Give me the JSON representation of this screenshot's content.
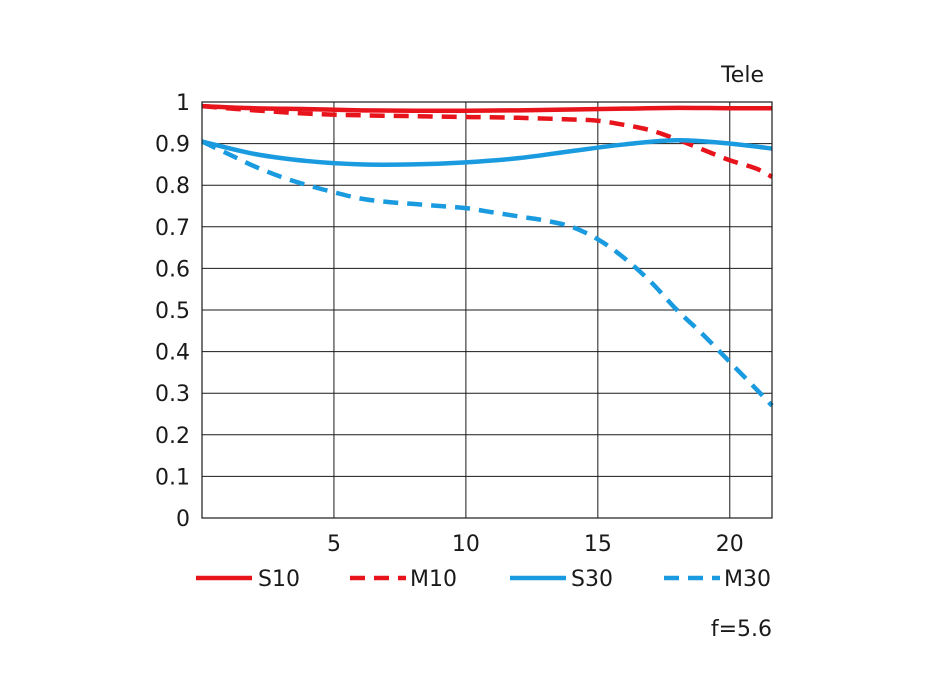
{
  "chart_data": {
    "type": "line",
    "title": "Tele",
    "footnote": "f=5.6",
    "xlim": [
      0,
      21.6
    ],
    "ylim": [
      0,
      1
    ],
    "x_ticks": [
      5,
      10,
      15,
      20
    ],
    "x_tick_labels": [
      "5",
      "10",
      "15",
      "20"
    ],
    "y_ticks": [
      0,
      0.1,
      0.2,
      0.3,
      0.4,
      0.5,
      0.6,
      0.7,
      0.8,
      0.9,
      1
    ],
    "y_tick_labels": [
      "0",
      "0.1",
      "0.2",
      "0.3",
      "0.4",
      "0.5",
      "0.6",
      "0.7",
      "0.8",
      "0.9",
      "1"
    ],
    "grid": true,
    "legend_position": "bottom",
    "series": [
      {
        "name": "S10",
        "color": "#e8141c",
        "dashed": false,
        "x": [
          0,
          2,
          4,
          6,
          8,
          10,
          12,
          14,
          16,
          18,
          20,
          21.6
        ],
        "y": [
          0.99,
          0.985,
          0.983,
          0.98,
          0.979,
          0.979,
          0.98,
          0.982,
          0.984,
          0.986,
          0.985,
          0.985
        ]
      },
      {
        "name": "M10",
        "color": "#e8141c",
        "dashed": true,
        "x": [
          0,
          2,
          4,
          6,
          8,
          10,
          12,
          14,
          15,
          16,
          17,
          18,
          19,
          20,
          21,
          21.6
        ],
        "y": [
          0.99,
          0.98,
          0.972,
          0.968,
          0.966,
          0.964,
          0.962,
          0.958,
          0.955,
          0.945,
          0.932,
          0.91,
          0.885,
          0.86,
          0.84,
          0.82
        ]
      },
      {
        "name": "S30",
        "color": "#1a9be0",
        "dashed": false,
        "x": [
          0,
          2,
          4,
          6,
          8,
          10,
          12,
          14,
          16,
          18,
          20,
          21.6
        ],
        "y": [
          0.905,
          0.875,
          0.858,
          0.85,
          0.85,
          0.855,
          0.865,
          0.882,
          0.898,
          0.908,
          0.9,
          0.888
        ]
      },
      {
        "name": "M30",
        "color": "#1a9be0",
        "dashed": true,
        "x": [
          0,
          1,
          2,
          3,
          4,
          5,
          6,
          7,
          8,
          9,
          10,
          11,
          12,
          13,
          14,
          15,
          16,
          17,
          18,
          19,
          20,
          21,
          21.6
        ],
        "y": [
          0.905,
          0.875,
          0.845,
          0.82,
          0.8,
          0.783,
          0.768,
          0.76,
          0.755,
          0.75,
          0.745,
          0.735,
          0.725,
          0.715,
          0.7,
          0.67,
          0.625,
          0.568,
          0.5,
          0.44,
          0.375,
          0.31,
          0.27
        ]
      }
    ]
  }
}
